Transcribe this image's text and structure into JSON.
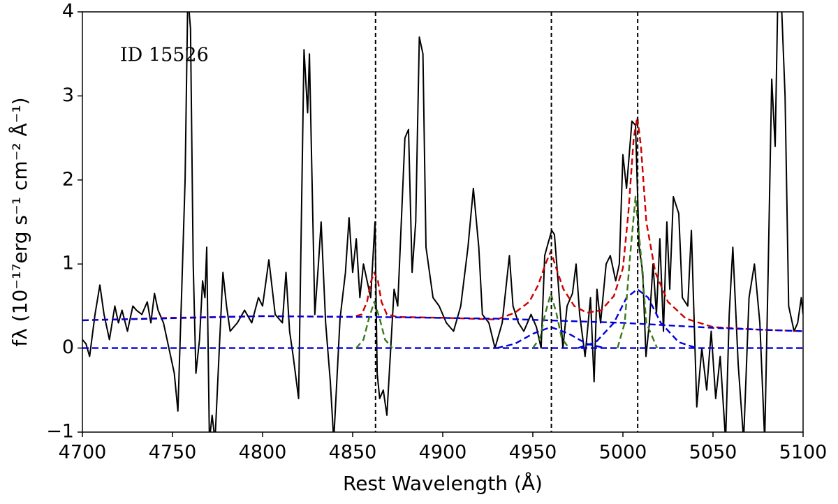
{
  "chart_data": {
    "type": "line",
    "xlabel": "Rest Wavelength (Å)",
    "ylabel": "fλ (10⁻¹⁷erg s⁻¹ cm⁻² Å⁻¹)",
    "annotation": "ID 15526",
    "xlim": [
      4700,
      5100
    ],
    "ylim": [
      -1,
      4
    ],
    "xticks": [
      4700,
      4750,
      4800,
      4850,
      4900,
      4950,
      5000,
      5050,
      5100
    ],
    "yticks": [
      {
        "value": -1,
        "label": "−1"
      },
      0,
      1,
      2,
      3,
      4
    ],
    "vlines": [
      4862.7,
      4960.3,
      5008.2
    ],
    "vline_color": "#000000",
    "series": [
      {
        "color": "#000000",
        "style": "solid",
        "x": [
          4700,
          4702,
          4704,
          4707,
          4709.7,
          4712,
          4715,
          4718,
          4720,
          4722,
          4725,
          4728,
          4730,
          4733,
          4736,
          4738,
          4740,
          4742,
          4745,
          4748,
          4751,
          4753,
          4755,
          4757,
          4758.5,
          4760,
          4761.5,
          4763,
          4765,
          4766.7,
          4768,
          4769,
          4770.5,
          4772,
          4773.6,
          4776,
          4778,
          4780,
          4782,
          4786,
          4790,
          4794,
          4797.7,
          4800,
          4803.5,
          4807,
          4811,
          4813,
          4815,
          4817,
          4820,
          4823,
          4825,
          4826,
          4829,
          4831,
          4832.5,
          4835,
          4837.6,
          4839.5,
          4843,
          4846,
          4848,
          4850,
          4852,
          4854,
          4856,
          4858,
          4860,
          4862.4,
          4863.6,
          4865,
          4867,
          4869,
          4873,
          4875,
          4879,
          4881,
          4883,
          4885,
          4887,
          4889,
          4890.7,
          4894.6,
          4898,
          4902,
          4906,
          4910,
          4914,
          4917,
          4920,
          4922,
          4925.6,
          4929,
          4933,
          4937,
          4939,
          4942,
          4945,
          4949,
          4952,
          4954.6,
          4956.6,
          4958.5,
          4960.5,
          4962,
          4964,
          4966.7,
          4969,
          4972,
          4974,
          4976,
          4979,
          4982,
          4984,
          4985.6,
          4987.6,
          4990.7,
          4993,
          4996,
          4998,
          5000,
          5002,
          5005,
          5007,
          5009,
          5011,
          5012.8,
          5014.7,
          5016.7,
          5018.6,
          5020.5,
          5022.5,
          5024.4,
          5026,
          5028,
          5031,
          5033,
          5036,
          5038,
          5041,
          5043.8,
          5046.5,
          5049,
          5051.5,
          5054,
          5057,
          5059,
          5061,
          5064,
          5067,
          5070,
          5073,
          5076,
          5078.7,
          5080.6,
          5082.6,
          5084.5,
          5086,
          5088,
          5090,
          5092,
          5095,
          5097,
          5099,
          5100
        ],
        "values": [
          0.1,
          0.05,
          -0.1,
          0.4,
          0.75,
          0.4,
          0.1,
          0.5,
          0.3,
          0.45,
          0.2,
          0.5,
          0.45,
          0.4,
          0.55,
          0.3,
          0.65,
          0.45,
          0.3,
          0.0,
          -0.3,
          -0.75,
          0.6,
          2.0,
          4.2,
          3.8,
          1.0,
          -0.3,
          0.1,
          0.8,
          0.6,
          1.2,
          -1.1,
          -0.8,
          -1.1,
          0.0,
          0.9,
          0.5,
          0.2,
          0.3,
          0.45,
          0.3,
          0.6,
          0.5,
          1.05,
          0.4,
          0.3,
          0.9,
          0.2,
          -0.1,
          -0.6,
          3.55,
          2.8,
          3.5,
          0.4,
          1.0,
          1.5,
          0.3,
          -0.4,
          -1.1,
          0.35,
          0.9,
          1.55,
          0.9,
          1.3,
          0.6,
          1.0,
          0.8,
          0.6,
          1.5,
          -0.3,
          -0.6,
          -0.5,
          -0.8,
          0.7,
          0.5,
          2.5,
          2.6,
          0.9,
          1.5,
          3.7,
          3.5,
          1.2,
          0.6,
          0.5,
          0.3,
          0.2,
          0.5,
          1.2,
          1.9,
          1.2,
          0.4,
          0.3,
          0.0,
          0.3,
          1.1,
          0.5,
          0.3,
          0.2,
          0.4,
          0.25,
          0.0,
          1.1,
          1.25,
          1.4,
          1.35,
          0.8,
          0.0,
          0.5,
          0.65,
          1.0,
          0.4,
          -0.1,
          0.6,
          -0.4,
          0.7,
          0.3,
          1.0,
          1.1,
          0.8,
          1.0,
          2.3,
          1.9,
          2.7,
          2.65,
          1.2,
          0.9,
          -0.1,
          0.3,
          1.0,
          0.4,
          1.3,
          0.2,
          1.5,
          0.7,
          1.8,
          1.6,
          0.6,
          0.5,
          1.4,
          -0.7,
          0.0,
          -0.5,
          0.2,
          -0.6,
          -0.1,
          -1.1,
          0.4,
          1.2,
          -0.2,
          -1.1,
          0.6,
          1.0,
          0.3,
          -1.1,
          0.9,
          3.2,
          2.4,
          4.2,
          4.1,
          3.0,
          0.5,
          0.2,
          0.3,
          0.6,
          0.4
        ]
      },
      {
        "color": "#cc0000",
        "style": "dashed",
        "x": [
          4700,
          4750,
          4800,
          4850,
          4855,
          4858,
          4860,
          4862,
          4864,
          4866,
          4869,
          4875,
          4900,
          4930,
          4940,
          4948,
          4953,
          4957,
          4960,
          4963,
          4967,
          4973,
          4980,
          4988,
          4995,
          5000,
          5003,
          5006,
          5008,
          5010,
          5013,
          5018,
          5025,
          5035,
          5050,
          5075,
          5100
        ],
        "values": [
          0.33,
          0.36,
          0.38,
          0.37,
          0.4,
          0.55,
          0.78,
          0.9,
          0.8,
          0.55,
          0.4,
          0.37,
          0.36,
          0.34,
          0.42,
          0.55,
          0.75,
          1.0,
          1.15,
          0.95,
          0.7,
          0.5,
          0.42,
          0.45,
          0.62,
          0.95,
          1.6,
          2.5,
          2.75,
          2.4,
          1.5,
          0.9,
          0.55,
          0.35,
          0.25,
          0.22,
          0.2
        ]
      },
      {
        "color": "#0000dd",
        "style": "dashed",
        "x": [
          4700,
          4800,
          4860,
          4930,
          5000,
          5050,
          5100
        ],
        "values": [
          0.33,
          0.38,
          0.37,
          0.35,
          0.3,
          0.24,
          0.2
        ]
      },
      {
        "color": "#0000dd",
        "style": "dashed",
        "x": [
          4700,
          5100
        ],
        "values": [
          0,
          0
        ]
      },
      {
        "color": "#0000dd",
        "style": "dashed",
        "x": [
          4930,
          4940,
          4950,
          4960,
          4970,
          4980,
          4990
        ],
        "values": [
          0,
          0.05,
          0.17,
          0.25,
          0.17,
          0.05,
          0
        ]
      },
      {
        "color": "#0000dd",
        "style": "dashed",
        "x": [
          4975,
          4985,
          4995,
          5002,
          5008,
          5014,
          5021,
          5031,
          5041
        ],
        "values": [
          0,
          0.07,
          0.3,
          0.6,
          0.7,
          0.6,
          0.3,
          0.07,
          0
        ]
      },
      {
        "color": "#3a7a1a",
        "style": "dashed",
        "x": [
          4852,
          4856,
          4859,
          4862,
          4865,
          4868,
          4872
        ],
        "values": [
          0,
          0.1,
          0.35,
          0.55,
          0.35,
          0.1,
          0
        ]
      },
      {
        "color": "#3a7a1a",
        "style": "dashed",
        "x": [
          4950,
          4954,
          4957,
          4960,
          4963,
          4966,
          4970
        ],
        "values": [
          0,
          0.12,
          0.42,
          0.65,
          0.42,
          0.12,
          0
        ]
      },
      {
        "color": "#3a7a1a",
        "style": "dashed",
        "x": [
          4997,
          5001,
          5004,
          5007,
          5010,
          5013,
          5019
        ],
        "values": [
          0,
          0.3,
          1.1,
          1.8,
          1.1,
          0.3,
          0
        ]
      }
    ]
  }
}
